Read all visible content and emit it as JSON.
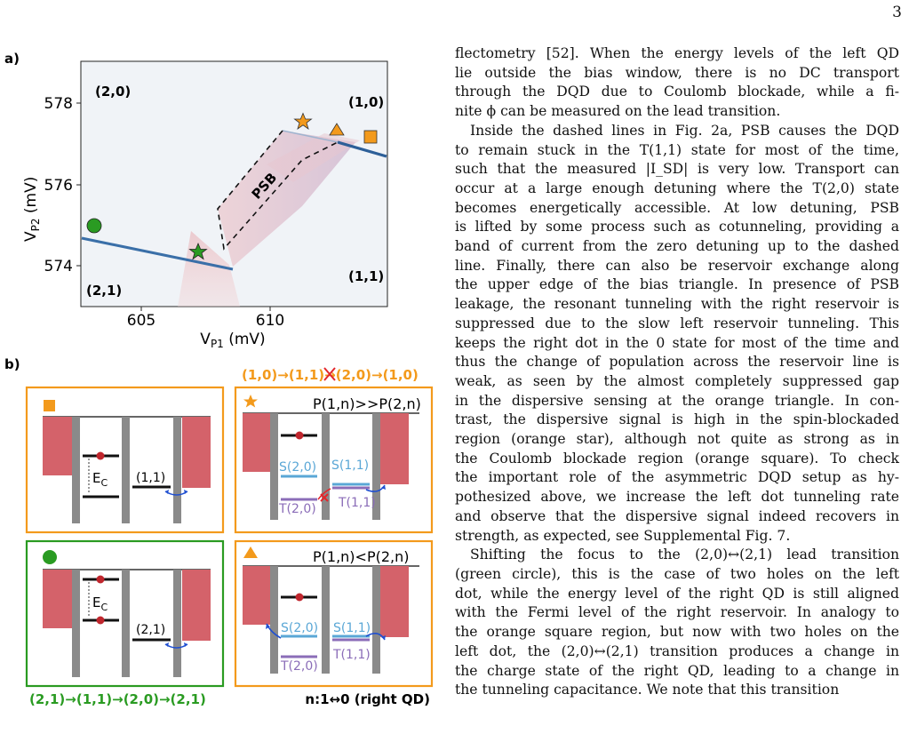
{
  "page_number": "3",
  "figure": {
    "panel_a": {
      "label": "a)",
      "xlabel": "V",
      "xlabel_sub": "P1",
      "xlabel_unit": "(mV)",
      "ylabel": "V",
      "ylabel_sub": "P2",
      "ylabel_unit": "(mV)",
      "xticks": [
        "605",
        "610"
      ],
      "yticks": [
        "578",
        "576",
        "574"
      ],
      "regions": [
        "(2,0)",
        "(1,0)",
        "(2,1)",
        "(1,1)"
      ],
      "psb_label": "PSB"
    },
    "panel_b": {
      "label": "b)",
      "top_caption_parts": [
        "(1,0)→(1,1)",
        "(2,0)→(1,0)"
      ],
      "bottom_left_caption": "(2,1)→(1,1)→(2,0)→(2,1)",
      "bottom_right_caption": "n:1↔0 (right QD)",
      "square_box": {
        "ec": "E",
        "ec_sub": "C",
        "level_label": "(1,1)"
      },
      "circle_box": {
        "ec": "E",
        "ec_sub": "C",
        "level_label": "(2,1)"
      },
      "star_box": {
        "title": "P(1,n)>>P(2,n)",
        "s20": "S(2,0)",
        "s11": "S(1,1)",
        "t20": "T(2,0)",
        "t11": "T(1,1)"
      },
      "triangle_box": {
        "title": "P(1,n)<P(2,n)",
        "s20": "S(2,0)",
        "s11": "S(1,1)",
        "t20": "T(2,0)",
        "t11": "T(1,1)"
      }
    },
    "colors": {
      "orange": "#f39a1c",
      "green": "#2a9b22",
      "reservoir": "#d4626a",
      "barrier": "#8a8a8a",
      "singlet": "#5aa7d6",
      "triplet": "#8b6db8",
      "arrow": "#1f4fd1",
      "cross": "#e3262b"
    }
  },
  "text": {
    "p1_lines": [
      "flectometry [52]. When the energy levels of the left QD",
      "lie outside the bias window, there is no DC transport",
      "through the DQD due to Coulomb blockade, while a fi-",
      "nite ϕ can be measured on the lead transition."
    ],
    "p2_lines": [
      "Inside the dashed lines in Fig. 2a, PSB causes the DQD",
      "to remain stuck in the T(1,1) state for most of the time,",
      "such that the measured |I_SD| is very low. Transport can",
      "occur at a large enough detuning where the T(2,0) state",
      "becomes energetically accessible. At low detuning, PSB",
      "is lifted by some process such as cotunneling, providing a",
      "band of current from the zero detuning up to the dashed",
      "line. Finally, there can also be reservoir exchange along",
      "the upper edge of the bias triangle. In presence of PSB",
      "leakage, the resonant tunneling with the right reservoir is",
      "suppressed due to the slow left reservoir tunneling. This",
      "keeps the right dot in the 0 state for most of the time and",
      "thus the change of population across the reservoir line is",
      "weak, as seen by the almost completely suppressed gap",
      "in the dispersive sensing at the orange triangle. In con-",
      "trast, the dispersive signal is high in the spin-blockaded",
      "region (orange star), although not quite as strong as in",
      "the Coulomb blockade region (orange square). To check",
      "the important role of the asymmetric DQD setup as hy-",
      "pothesized above, we increase the left dot tunneling rate",
      "and observe that the dispersive signal indeed recovers in",
      "strength, as expected, see Supplemental Fig. 7."
    ],
    "p3_lines": [
      "Shifting the focus to the (2,0)↔(2,1) lead transition",
      "(green circle), this is the case of two holes on the left",
      "dot, while the energy level of the right QD is still aligned",
      "with the Fermi level of the right reservoir. In analogy to",
      "the orange square region, but now with two holes on the",
      "left dot, the (2,0)↔(2,1) transition produces a change in",
      "the charge state of the right QD, leading to a change in",
      "the tunneling capacitance. We note that this transition"
    ]
  }
}
